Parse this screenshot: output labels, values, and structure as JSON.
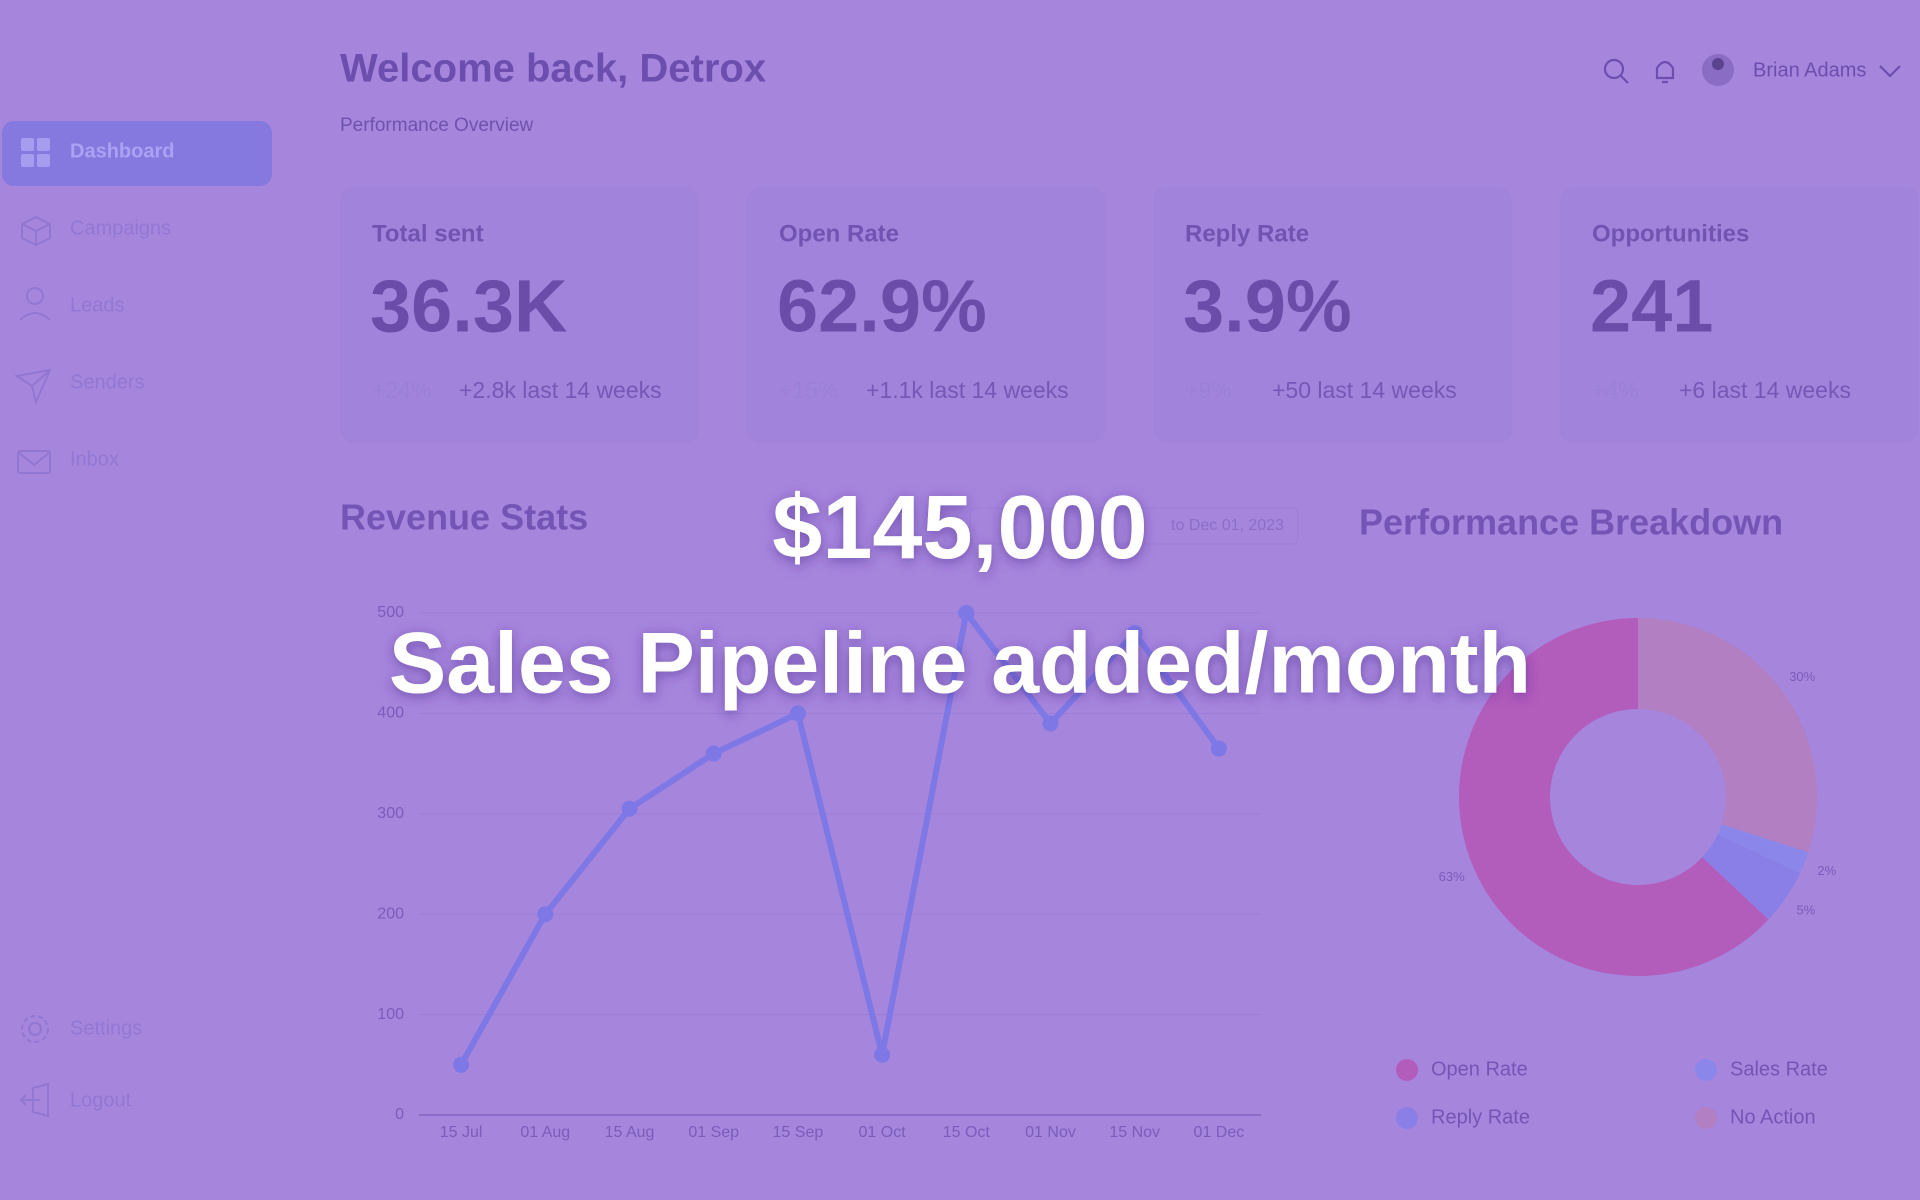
{
  "header": {
    "title": "Welcome back, Detrox",
    "subtitle": "Performance Overview",
    "user": "Brian Adams"
  },
  "sidebar": {
    "nav": [
      "Dashboard",
      "Campaigns",
      "Leads",
      "Senders",
      "Inbox"
    ],
    "footer": [
      "Settings",
      "Logout"
    ]
  },
  "stats": [
    {
      "label": "Total sent",
      "value": "36.3K",
      "change": "+24%",
      "detail": "+2.8k last 14 weeks"
    },
    {
      "label": "Open Rate",
      "value": "62.9%",
      "change": "+15%",
      "detail": "+1.1k last 14 weeks"
    },
    {
      "label": "Reply Rate",
      "value": "3.9%",
      "change": "+9%",
      "detail": "+50 last 14 weeks"
    },
    {
      "label": "Opportunities",
      "value": "241",
      "change": "+4%",
      "detail": "+6 last 14 weeks"
    }
  ],
  "revenue_chart": {
    "type": "line",
    "title": "Revenue Stats",
    "date_range": "to Dec 01, 2023",
    "categories": [
      "15 Jul",
      "01 Aug",
      "15 Aug",
      "01 Sep",
      "15 Sep",
      "01 Oct",
      "15 Oct",
      "01 Nov",
      "15 Nov",
      "01 Dec"
    ],
    "values": [
      50,
      200,
      305,
      360,
      400,
      60,
      500,
      390,
      480,
      365
    ],
    "color": "#7d78e6",
    "ylim": [
      0,
      500
    ],
    "yticks": [
      0,
      100,
      200,
      300,
      400,
      500
    ],
    "grid": true
  },
  "breakdown_chart": {
    "type": "pie",
    "title": "Performance Breakdown",
    "categories": [
      "No Action",
      "Sales Rate",
      "Reply Rate",
      "Open Rate"
    ],
    "values": [
      30,
      2,
      5,
      63
    ],
    "value_labels": [
      "30%",
      "2%",
      "5%",
      "63%"
    ],
    "colors": [
      "#b27fc2",
      "#8a86ea",
      "#8a7fe6",
      "#b25cbc"
    ]
  },
  "overlay": {
    "headline": "$145,000",
    "tagline": "Sales Pipeline added/month"
  }
}
